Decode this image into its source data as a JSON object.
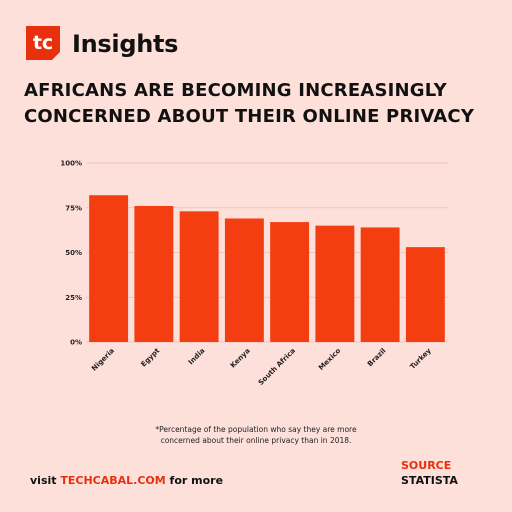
{
  "header": {
    "logo_text": "tc",
    "brand": "Insights",
    "title_line1": "AFRICANS ARE BECOMING INCREASINGLY",
    "title_line2": "CONCERNED ABOUT THEIR ONLINE PRIVACY"
  },
  "colors": {
    "background": "#fde0da",
    "bar": "#f43d11",
    "accent": "#e8300e",
    "grid": "#f1b9ae"
  },
  "chart_data": {
    "type": "bar",
    "categories": [
      "Nigeria",
      "Egypt",
      "India",
      "Kenya",
      "South Africa",
      "Mexico",
      "Brazil",
      "Turkey"
    ],
    "values": [
      82,
      76,
      73,
      69,
      67,
      65,
      64,
      53
    ],
    "yticks": [
      "0%",
      "25%",
      "50%",
      "75%",
      "100%"
    ],
    "ylim": [
      0,
      100
    ],
    "title": "",
    "xlabel": "",
    "ylabel": "",
    "grid": true
  },
  "footnote": {
    "line1": "*Percentage of the population who say they are more",
    "line2": "concerned about their online privacy than in 2018."
  },
  "footer": {
    "visit_prefix": "visit ",
    "visit_site": "TECHCABAL.COM",
    "visit_suffix": " for more",
    "source_label": "SOURCE",
    "source_value": "STATISTA"
  }
}
